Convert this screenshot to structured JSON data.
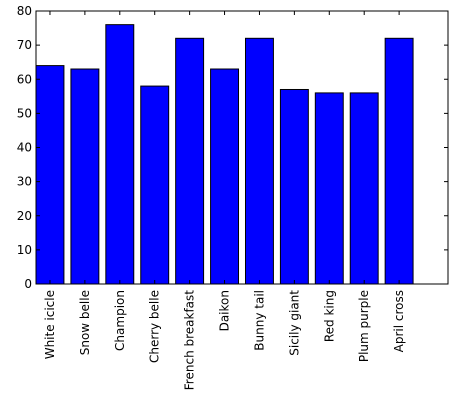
{
  "chart_data": {
    "type": "bar",
    "categories": [
      "White icicle",
      "Snow belle",
      "Champion",
      "Cherry belle",
      "French breakfast",
      "Daikon",
      "Bunny tail",
      "Sicily giant",
      "Red king",
      "Plum purple",
      "April cross"
    ],
    "values": [
      64,
      63,
      76,
      58,
      72,
      63,
      72,
      57,
      56,
      56,
      72
    ],
    "title": "",
    "xlabel": "",
    "ylabel": "",
    "ylim": [
      0,
      80
    ],
    "xlim": [
      -0.4,
      11.4
    ],
    "yticks": [
      0,
      10,
      20,
      30,
      40,
      50,
      60,
      70,
      80
    ],
    "grid": false,
    "legend": "none",
    "bar_color": "#0000ff",
    "edge_color": "#000000"
  }
}
